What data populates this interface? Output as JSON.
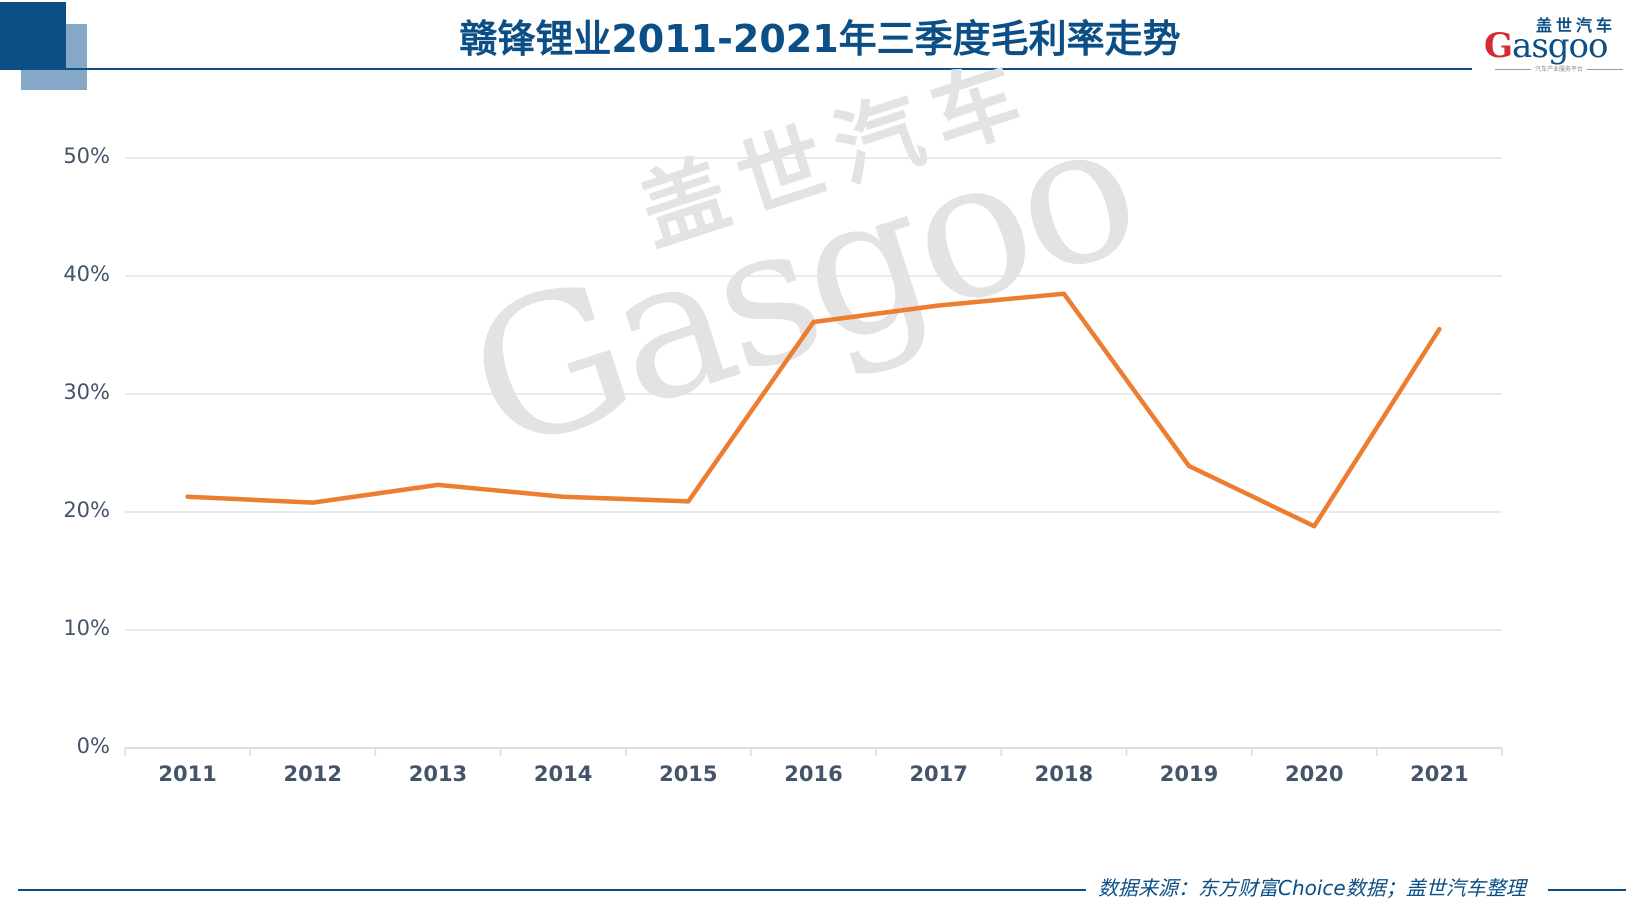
{
  "header": {
    "title": "赣锋锂业2011-2021年三季度毛利率走势",
    "colors": {
      "brand_dark": "#0b4f86",
      "brand_light": "#85a8c6"
    }
  },
  "logo": {
    "cn": "盖世汽车",
    "en_g": "G",
    "en_rest": "asgoo",
    "tagline": "汽车产业服务平台"
  },
  "watermark": {
    "en": "Gasgoo",
    "cn": "盖世汽车"
  },
  "footer": {
    "source": "数据来源：东方财富Choice数据；盖世汽车整理"
  },
  "chart_data": {
    "type": "line",
    "title": "赣锋锂业2011-2021年三季度毛利率走势",
    "xlabel": "",
    "ylabel": "",
    "categories": [
      "2011",
      "2012",
      "2013",
      "2014",
      "2015",
      "2016",
      "2017",
      "2018",
      "2019",
      "2020",
      "2021"
    ],
    "series": [
      {
        "name": "毛利率",
        "color": "#ed7d31",
        "values": [
          21.3,
          20.8,
          22.3,
          21.3,
          20.9,
          36.1,
          37.5,
          38.5,
          23.9,
          18.8,
          35.5
        ]
      }
    ],
    "ylim": [
      0,
      50
    ],
    "yticks": [
      "0%",
      "10%",
      "20%",
      "30%",
      "40%",
      "50%"
    ],
    "grid": true,
    "legend": "none"
  }
}
